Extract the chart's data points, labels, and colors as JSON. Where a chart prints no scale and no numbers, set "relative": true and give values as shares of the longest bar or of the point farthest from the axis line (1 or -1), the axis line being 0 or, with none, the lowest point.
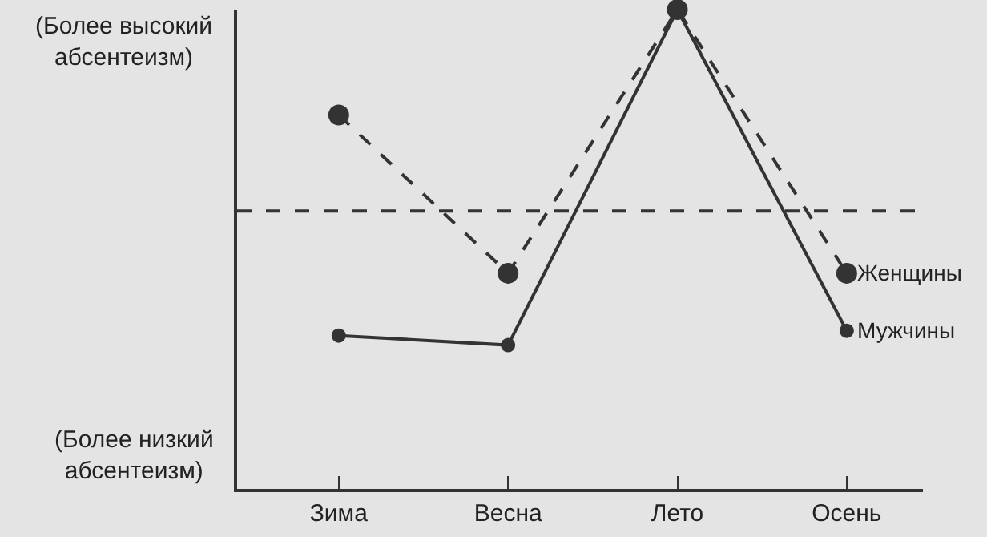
{
  "chart_data": {
    "type": "line",
    "relative": true,
    "categories": [
      "Зима",
      "Весна",
      "Лето",
      "Осень"
    ],
    "series": [
      {
        "name": "Женщины",
        "color": "#333333",
        "line_style": "dashed",
        "values": [
          0.78,
          0.45,
          1,
          0.45
        ]
      },
      {
        "name": "Мужчины",
        "color": "#333333",
        "line_style": "solid",
        "values": [
          0.32,
          0.3,
          1,
          0.33
        ]
      }
    ],
    "ref_lines": [
      {
        "axis": "y",
        "value": 0.58,
        "color": "#333333",
        "line_style": "dashed"
      }
    ],
    "annotations": [
      "(Более высокий\nабсентеизм)",
      "(Более низкий\nабсентеизм)"
    ],
    "marker": "circle",
    "legend": false,
    "grid": false
  }
}
